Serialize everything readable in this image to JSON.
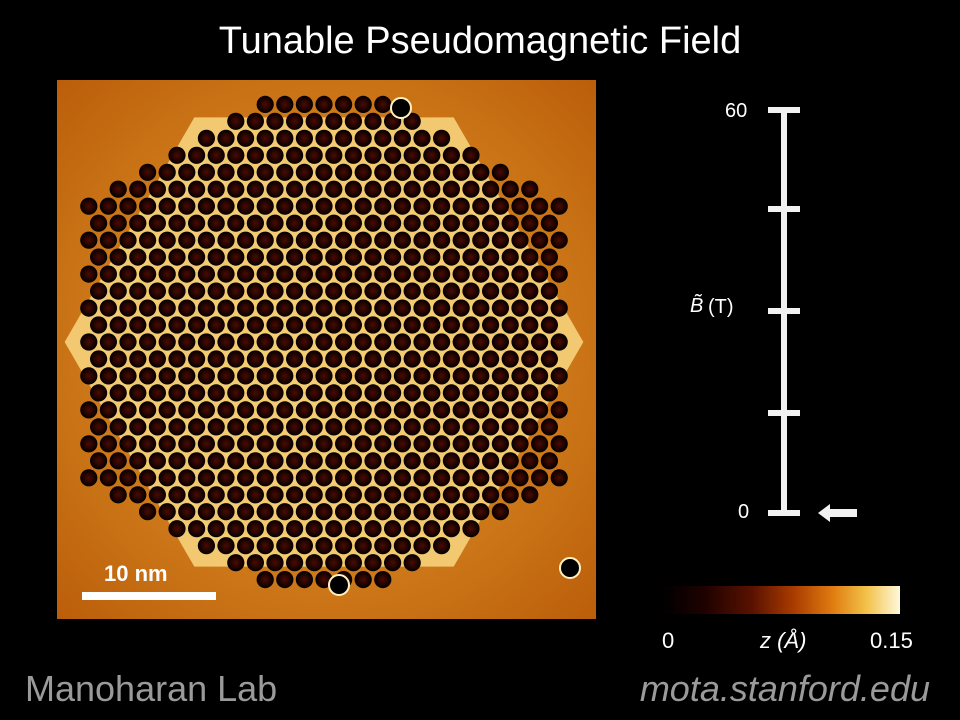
{
  "title": "Tunable Pseudomagnetic Field",
  "image": {
    "description_icon": "stm-topograph-hexagonal-lattice",
    "scale_bar_label": "10 nm"
  },
  "field_axis": {
    "label_symbol": "B̃",
    "label_unit": "(T)",
    "top_tick": "60",
    "bottom_tick": "0",
    "indicator_value": 0,
    "indicator_icon": "left-arrow-icon"
  },
  "colorbar": {
    "min_label": "0",
    "max_label": "0.15",
    "variable_label": "z (Å)",
    "colors": [
      "#000000",
      "#5a1200",
      "#a83a00",
      "#e07d10",
      "#f2c24a",
      "#fff8dc"
    ]
  },
  "footer": {
    "left": "Manoharan Lab",
    "right": "mota.stanford.edu"
  }
}
